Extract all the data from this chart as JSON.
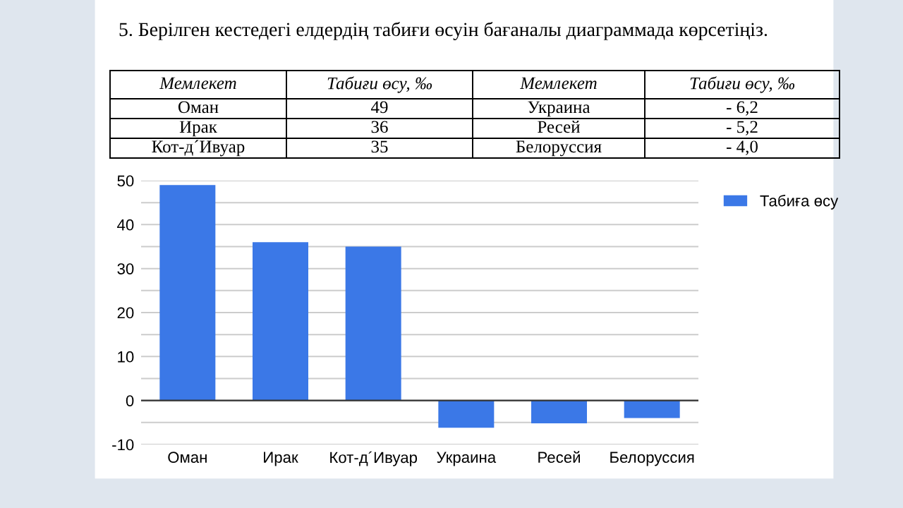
{
  "chart_data": {
    "type": "bar",
    "title": "5. Берілген кестедегі елдердің табиғи өсуін бағаналы диаграммада көрсетіңіз.",
    "annotations": [
      "Мемлекет",
      "Табиғи өсу, ‰",
      "Мемлекет",
      "Табиғи өсу, ‰",
      "Оман",
      "49",
      "Украина",
      "- 6,2",
      "Ирак",
      "36",
      "Ресей",
      "- 5,2",
      "Кот-д´Ивуар",
      "35",
      "Белоруссия",
      "- 4,0"
    ],
    "categories": [
      "Оман",
      "Ирак",
      "Кот-д´Ивуар",
      "Украина",
      "Ресей",
      "Белоруссия"
    ],
    "series": [
      {
        "name": "Табиға өсу",
        "color": "#3b78e7",
        "values": [
          49,
          36,
          35,
          -6.2,
          -5.2,
          -4.0
        ]
      }
    ],
    "ylim": [
      -10,
      50
    ],
    "yticks": [
      -10,
      {
        "value": -5,
        "label": null
      },
      0,
      {
        "value": 5,
        "label": null
      },
      10,
      {
        "value": 15,
        "label": null
      },
      20,
      {
        "value": 25,
        "label": null
      },
      30,
      {
        "value": 35,
        "label": null
      },
      40,
      {
        "value": 45,
        "label": null
      },
      50
    ],
    "grid": "y",
    "legend": "top right"
  }
}
